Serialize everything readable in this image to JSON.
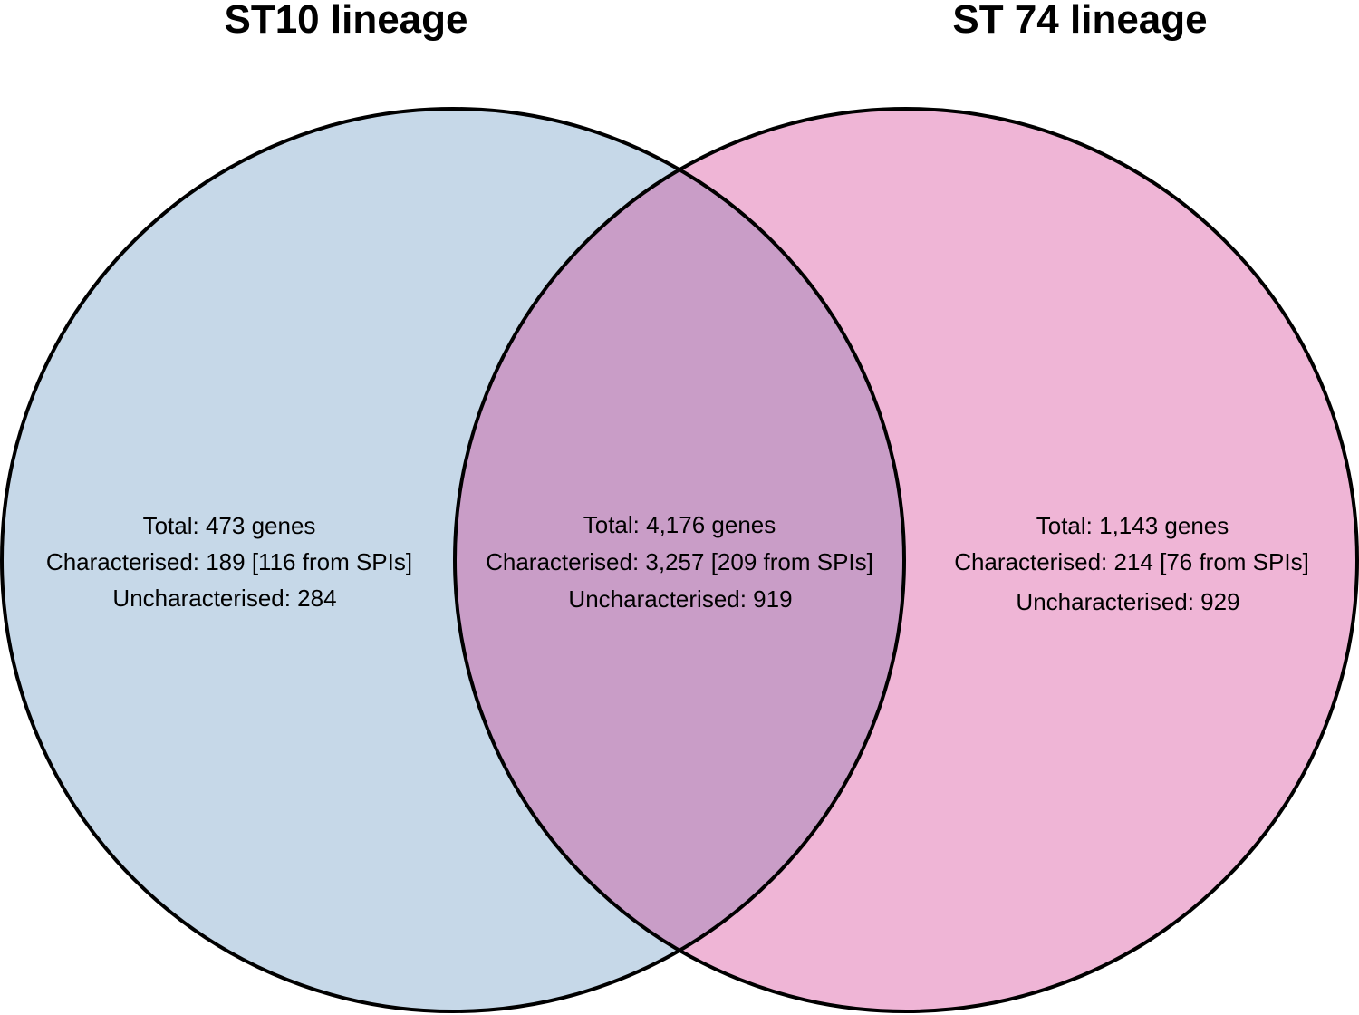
{
  "sets": [
    {
      "title": "ST10 lineage",
      "fill": "#c6d8e8",
      "region": {
        "total": "Total: 473 genes",
        "characterised": "Characterised: 189 [116 from SPIs]",
        "uncharacterised": "Uncharacterised: 284"
      }
    },
    {
      "title": "ST 74 lineage",
      "fill": "#efb5d6",
      "region": {
        "total": "Total: 1,143 genes",
        "characterised": "Characterised: 214 [76 from SPIs]",
        "uncharacterised": "Uncharacterised: 929"
      }
    }
  ],
  "intersection": {
    "fill": "#c99dc7",
    "total": "Total: 4,176 genes",
    "characterised": "Characterised: 3,257 [209 from SPIs]",
    "uncharacterised": "Uncharacterised: 919"
  },
  "outline_color": "#000000"
}
